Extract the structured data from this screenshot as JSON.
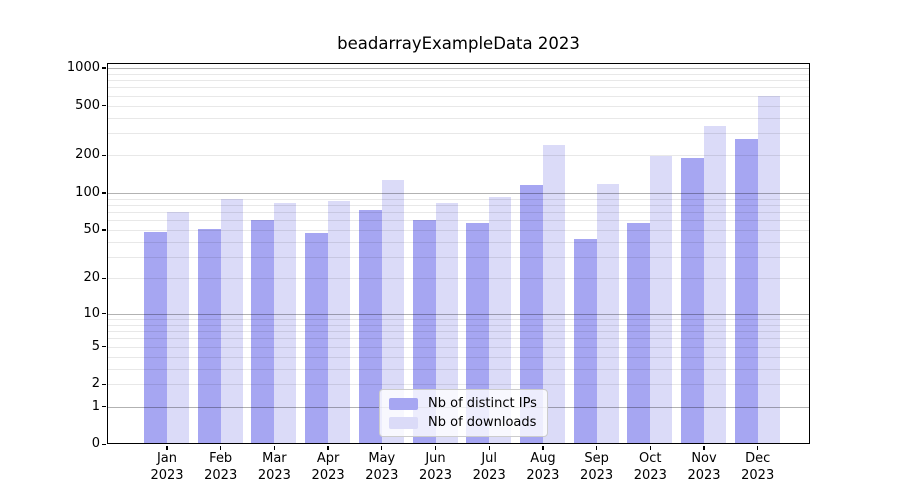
{
  "figure": {
    "title": "beadarrayExampleData 2023",
    "background_color": "#ffffff",
    "axis_color": "#000000"
  },
  "chart_data": {
    "type": "bar",
    "title": "beadarrayExampleData 2023",
    "xlabel": "",
    "ylabel": "",
    "categories": [
      "Jan 2023",
      "Feb 2023",
      "Mar 2023",
      "Apr 2023",
      "May 2023",
      "Jun 2023",
      "Jul 2023",
      "Aug 2023",
      "Sep 2023",
      "Oct 2023",
      "Nov 2023",
      "Dec 2023"
    ],
    "series": [
      {
        "name": "Nb of distinct IPs",
        "color": "#a6a6f2",
        "values": [
          48,
          51,
          60,
          47,
          73,
          60,
          57,
          115,
          42,
          57,
          191,
          270
        ]
      },
      {
        "name": "Nb of downloads",
        "color": "#dbdbf8",
        "values": [
          70,
          90,
          83,
          86,
          127,
          83,
          93,
          240,
          118,
          197,
          342,
          595
        ]
      }
    ],
    "y_scale": "log1p",
    "ylim": [
      0,
      1100
    ],
    "y_ticks": [
      0,
      1,
      2,
      5,
      10,
      20,
      50,
      100,
      200,
      500,
      1000
    ],
    "grid": true,
    "gridlines": {
      "major": [
        1,
        10,
        100,
        1000
      ],
      "minor": [
        2,
        3,
        4,
        5,
        6,
        7,
        8,
        9,
        20,
        30,
        40,
        50,
        60,
        70,
        80,
        90,
        200,
        300,
        400,
        500,
        600,
        700,
        800,
        900
      ],
      "major_color": "rgba(0,0,0,0.30)",
      "minor_color": "rgba(0,0,0,0.09)"
    },
    "legend_position": "lower center inside"
  }
}
